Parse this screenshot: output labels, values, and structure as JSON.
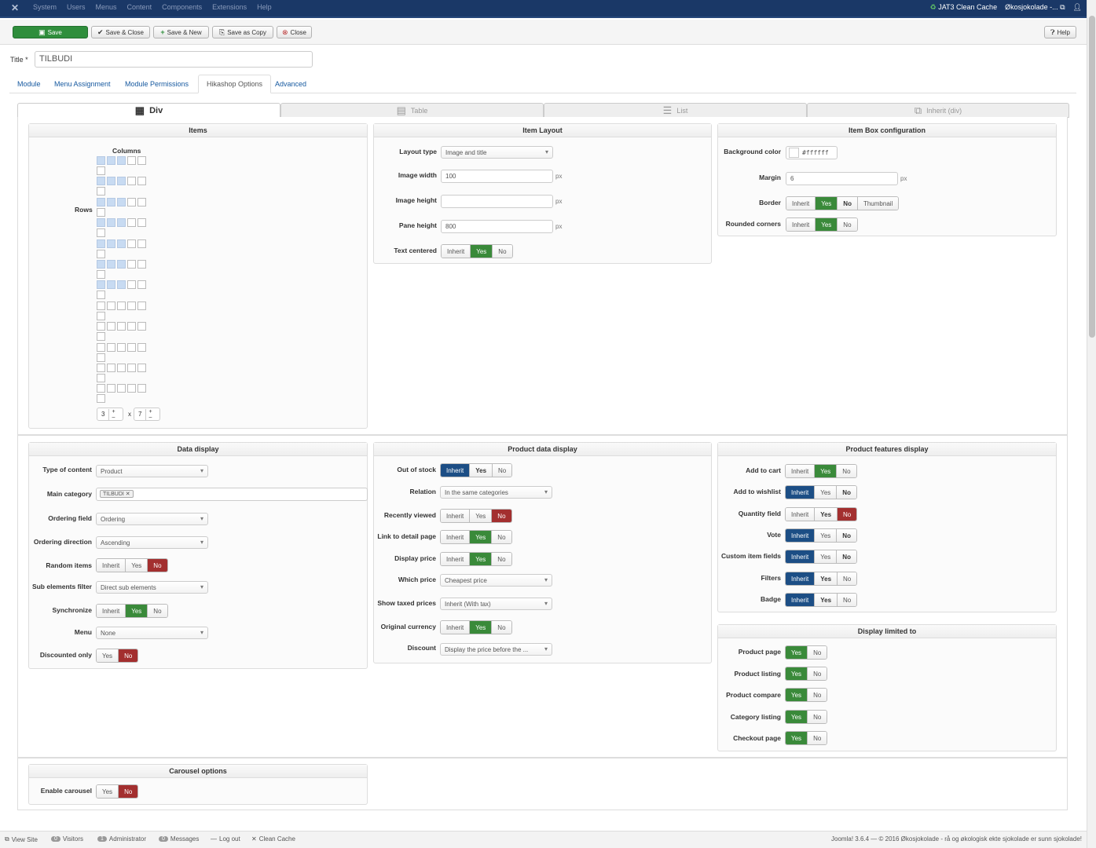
{
  "topbar": {
    "menu": [
      "System",
      "Users",
      "Menus",
      "Content",
      "Components",
      "Extensions",
      "Help"
    ],
    "jat3": "JAT3 Clean Cache",
    "site": "Økosjokolade -..."
  },
  "toolbar": {
    "save": "Save",
    "save_close": "Save & Close",
    "save_new": "Save & New",
    "save_copy": "Save as Copy",
    "close": "Close",
    "help": "Help"
  },
  "title": {
    "label": "Title *",
    "value": "TILBUDI"
  },
  "tabs": [
    "Module",
    "Menu Assignment",
    "Module Permissions",
    "Hikashop Options",
    "Advanced"
  ],
  "layout_tabs": [
    "Div",
    "Table",
    "List",
    "Inherit (div)"
  ],
  "items": {
    "title": "Items",
    "columns_label": "Columns",
    "rows_label": "Rows",
    "columns_value": "3",
    "x": "x",
    "rows_value": "7"
  },
  "item_layout": {
    "title": "Item Layout",
    "layout_type_label": "Layout type",
    "layout_type": "Image and title",
    "image_width_label": "Image width",
    "image_width": "100",
    "image_height_label": "Image height",
    "image_height": "",
    "pane_height_label": "Pane height",
    "pane_height": "800",
    "text_centered_label": "Text centered",
    "px": "px"
  },
  "item_box": {
    "title": "Item Box configuration",
    "bg_label": "Background color",
    "bg_value": "#ffffff",
    "margin_label": "Margin",
    "margin_value": "6",
    "border_label": "Border",
    "rounded_label": "Rounded corners",
    "thumbnail": "Thumbnail"
  },
  "opts": {
    "inherit": "Inherit",
    "yes": "Yes",
    "no": "No"
  },
  "data_display": {
    "title": "Data display",
    "type_label": "Type of content",
    "type_value": "Product",
    "main_cat_label": "Main category",
    "main_cat_tag": "TILBUDI",
    "ordering_field_label": "Ordering field",
    "ordering_field": "Ordering",
    "ordering_dir_label": "Ordering direction",
    "ordering_dir": "Ascending",
    "random_label": "Random items",
    "sub_filter_label": "Sub elements filter",
    "sub_filter": "Direct sub elements",
    "sync_label": "Synchronize",
    "menu_label": "Menu",
    "menu_value": "None",
    "discounted_label": "Discounted only"
  },
  "product_data": {
    "title": "Product data display",
    "out_of_stock_label": "Out of stock",
    "relation_label": "Relation",
    "relation_value": "In the same categories",
    "recently_label": "Recently viewed",
    "link_label": "Link to detail page",
    "display_price_label": "Display price",
    "which_price_label": "Which price",
    "which_price": "Cheapest price",
    "taxed_label": "Show taxed prices",
    "taxed_value": "Inherit (With tax)",
    "orig_currency_label": "Original currency",
    "discount_label": "Discount",
    "discount_value": "Display the price before the ..."
  },
  "features": {
    "title": "Product features display",
    "add_to_cart": "Add to cart",
    "add_to_wishlist": "Add to wishlist",
    "quantity_field": "Quantity field",
    "vote": "Vote",
    "custom_fields": "Custom item fields",
    "filters": "Filters",
    "badge": "Badge"
  },
  "limited": {
    "title": "Display limited to",
    "product_page": "Product page",
    "product_listing": "Product listing",
    "product_compare": "Product compare",
    "category_listing": "Category listing",
    "checkout_page": "Checkout page"
  },
  "carousel": {
    "title": "Carousel options",
    "enable_label": "Enable carousel"
  },
  "footer": {
    "view_site": "View Site",
    "visitors_count": "0",
    "visitors": "Visitors",
    "admin_count": "1",
    "admin": "Administrator",
    "messages_count": "0",
    "messages": "Messages",
    "logout": "Log out",
    "clean_cache": "Clean Cache",
    "copyright": "Joomla! 3.6.4 — © 2016 Økosjokolade - rå og økologisk ekte sjokolade er sunn sjokolade!"
  }
}
